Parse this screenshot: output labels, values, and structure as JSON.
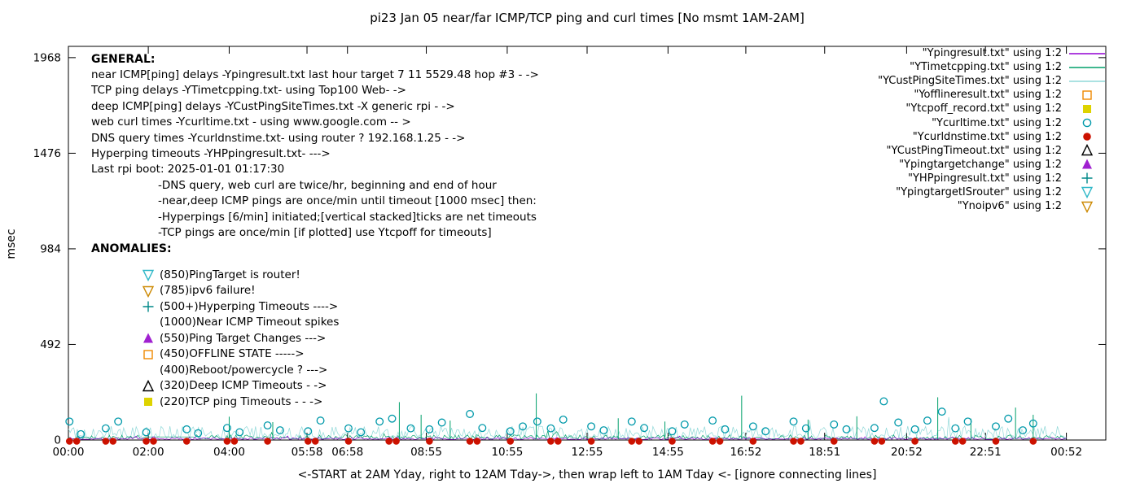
{
  "title": "pi23 Jan 05 near/far ICMP/TCP ping and curl times [No msmt 1AM-2AM]",
  "annotations": {
    "general": {
      "heading": "GENERAL:",
      "lines": [
        "near ICMP[ping] delays -Ypingresult.txt last hour target 7 11 5529.48 hop #3 - ->",
        "TCP ping delays -YTimetcpping.txt- using Top100 Web- ->",
        "deep ICMP[ping] delays -YCustPingSiteTimes.txt -X generic rpi - ->",
        "web curl times -Ycurltime.txt - using www.google.com -- >",
        "DNS query times -Ycurldnstime.txt- using router ? 192.168.1.25 - ->",
        "Hyperping timeouts -YHPpingresult.txt- --->",
        "Last rpi boot: 2025-01-01 01:17:30"
      ],
      "notes": [
        "-DNS query, web curl are twice/hr, beginning and end of hour",
        "-near,deep ICMP pings are once/min until timeout [1000 msec] then:",
        "-Hyperpings [6/min] initiated;[vertical stacked]ticks are net timeouts",
        "-TCP pings are once/min [if plotted] use Ytcpoff for timeouts]"
      ]
    },
    "anomalies": {
      "heading": "ANOMALIES:",
      "items": [
        {
          "marker": "triangle-down-open",
          "color": "#30b8c8",
          "label": "(850)PingTarget is router!"
        },
        {
          "marker": "triangle-down-open",
          "color": "#cc8800",
          "label": "(785)ipv6 failure!"
        },
        {
          "marker": "plus",
          "color": "#008888",
          "label": "(500+)Hyperping Timeouts ---->"
        },
        {
          "marker": "none",
          "color": "",
          "label": "(1000)Near ICMP Timeout spikes"
        },
        {
          "marker": "triangle-up-filled",
          "color": "#a020d0",
          "label": "(550)Ping Target Changes --->"
        },
        {
          "marker": "square-open",
          "color": "#ef8800",
          "label": "(450)OFFLINE STATE ----->"
        },
        {
          "marker": "none",
          "color": "",
          "label": "(400)Reboot/powercycle ? --->"
        },
        {
          "marker": "triangle-up-open",
          "color": "#000000",
          "label": "(320)Deep ICMP Timeouts - ->"
        },
        {
          "marker": "square-filled",
          "color": "#ded300",
          "label": "(220)TCP ping Timeouts - - ->"
        }
      ]
    }
  },
  "chart_data": {
    "type": "line",
    "title": "pi23 Jan 05 near/far ICMP/TCP ping and curl times [No msmt 1AM-2AM]",
    "xlabel": "<-START at 2AM Yday, right to 12AM Tday->, then wrap left to 1AM Tday <- [ignore connecting lines]",
    "ylabel": "msec",
    "ylim": [
      0,
      2026
    ],
    "yticks": [
      0,
      492,
      984,
      1476,
      1968
    ],
    "grid": false,
    "legend_position": "top-right",
    "data_end": 0.962,
    "xticks": [
      {
        "label": "00:00",
        "pos": 0.0
      },
      {
        "label": "02:00",
        "pos": 0.077
      },
      {
        "label": "04:00",
        "pos": 0.155
      },
      {
        "label": "05:58",
        "pos": 0.23
      },
      {
        "label": "06:58",
        "pos": 0.269
      },
      {
        "label": "08:55",
        "pos": 0.345
      },
      {
        "label": "10:55",
        "pos": 0.423
      },
      {
        "label": "12:55",
        "pos": 0.5
      },
      {
        "label": "14:55",
        "pos": 0.578
      },
      {
        "label": "16:52",
        "pos": 0.653
      },
      {
        "label": "18:51",
        "pos": 0.729
      },
      {
        "label": "20:52",
        "pos": 0.808
      },
      {
        "label": "22:51",
        "pos": 0.884
      },
      {
        "label": "00:52",
        "pos": 0.962
      }
    ],
    "legend": [
      {
        "label": "\"Ypingresult.txt\" using 1:2",
        "marker": "line",
        "color": "#9400d3"
      },
      {
        "label": "\"YTimetcpping.txt\" using 1:2",
        "marker": "line",
        "color": "#00a06a"
      },
      {
        "label": "\"YCustPingSiteTimes.txt\" using 1:2",
        "marker": "line",
        "color": "#8fd8d8"
      },
      {
        "label": "\"Yofflineresult.txt\" using 1:2",
        "marker": "square-open",
        "color": "#ef8800"
      },
      {
        "label": "\"Ytcpoff_record.txt\" using 1:2",
        "marker": "square-filled",
        "color": "#ded300"
      },
      {
        "label": "\"Ycurltime.txt\" using 1:2",
        "marker": "circle-open",
        "color": "#0099aa"
      },
      {
        "label": "\"Ycurldnstime.txt\" using 1:2",
        "marker": "circle-filled",
        "color": "#cc1100"
      },
      {
        "label": "\"YCustPingTimeout.txt\" using 1:2",
        "marker": "triangle-up-open",
        "color": "#000000"
      },
      {
        "label": "\"Ypingtargetchange\" using 1:2",
        "marker": "triangle-up-filled",
        "color": "#a020d0"
      },
      {
        "label": "\"YHPpingresult.txt\" using 1:2",
        "marker": "plus",
        "color": "#008888"
      },
      {
        "label": "\"YpingtargetISrouter\" using 1:2",
        "marker": "triangle-down-open",
        "color": "#30b8c8"
      },
      {
        "label": "\"Ynoipv6\" using 1:2",
        "marker": "triangle-down-open",
        "color": "#cc8800"
      }
    ],
    "baseline_series": [
      {
        "name": "YCustPingSiteTimes",
        "color": "#8fd8d8",
        "base": 10,
        "amp": 62,
        "pow": 1.7,
        "seed": 41
      },
      {
        "name": "YTimetcpping",
        "color": "#00a06a",
        "base": 5,
        "amp": 22,
        "pow": 2.0,
        "seed": 17,
        "flat": [
          0.073,
          0.121,
          16
        ]
      },
      {
        "name": "Ypingresult",
        "color": "#9400d3",
        "base": 3,
        "amp": 11,
        "pow": 2.0,
        "seed": 7
      }
    ],
    "spikes_msec": [
      [
        0.155,
        120
      ],
      [
        0.197,
        92
      ],
      [
        0.319,
        195
      ],
      [
        0.34,
        130
      ],
      [
        0.368,
        100
      ],
      [
        0.451,
        240
      ],
      [
        0.53,
        112
      ],
      [
        0.575,
        95
      ],
      [
        0.649,
        228
      ],
      [
        0.713,
        105
      ],
      [
        0.76,
        122
      ],
      [
        0.838,
        220
      ],
      [
        0.87,
        110
      ],
      [
        0.913,
        167
      ],
      [
        0.93,
        130
      ]
    ],
    "curl_circles_msec": [
      [
        0.001,
        95
      ],
      [
        0.012,
        30
      ],
      [
        0.036,
        60
      ],
      [
        0.048,
        95
      ],
      [
        0.075,
        40
      ],
      [
        0.114,
        55
      ],
      [
        0.125,
        35
      ],
      [
        0.153,
        62
      ],
      [
        0.165,
        40
      ],
      [
        0.192,
        75
      ],
      [
        0.204,
        50
      ],
      [
        0.231,
        45
      ],
      [
        0.243,
        100
      ],
      [
        0.27,
        60
      ],
      [
        0.282,
        40
      ],
      [
        0.3,
        95
      ],
      [
        0.312,
        110
      ],
      [
        0.33,
        60
      ],
      [
        0.348,
        55
      ],
      [
        0.36,
        90
      ],
      [
        0.387,
        134
      ],
      [
        0.399,
        62
      ],
      [
        0.426,
        45
      ],
      [
        0.438,
        70
      ],
      [
        0.452,
        95
      ],
      [
        0.465,
        60
      ],
      [
        0.477,
        105
      ],
      [
        0.504,
        70
      ],
      [
        0.516,
        50
      ],
      [
        0.543,
        95
      ],
      [
        0.555,
        62
      ],
      [
        0.582,
        45
      ],
      [
        0.594,
        80
      ],
      [
        0.621,
        100
      ],
      [
        0.633,
        55
      ],
      [
        0.66,
        70
      ],
      [
        0.672,
        45
      ],
      [
        0.699,
        95
      ],
      [
        0.711,
        60
      ],
      [
        0.738,
        80
      ],
      [
        0.75,
        55
      ],
      [
        0.777,
        62
      ],
      [
        0.786,
        199
      ],
      [
        0.8,
        90
      ],
      [
        0.816,
        55
      ],
      [
        0.828,
        100
      ],
      [
        0.842,
        146
      ],
      [
        0.855,
        60
      ],
      [
        0.867,
        95
      ],
      [
        0.894,
        70
      ],
      [
        0.906,
        110
      ],
      [
        0.92,
        50
      ],
      [
        0.93,
        85
      ]
    ],
    "dns_dots_pos": [
      0.001,
      0.008,
      0.036,
      0.043,
      0.075,
      0.082,
      0.114,
      0.153,
      0.16,
      0.192,
      0.231,
      0.238,
      0.27,
      0.309,
      0.316,
      0.348,
      0.387,
      0.394,
      0.426,
      0.465,
      0.472,
      0.504,
      0.543,
      0.55,
      0.582,
      0.621,
      0.628,
      0.66,
      0.699,
      0.706,
      0.738,
      0.777,
      0.784,
      0.816,
      0.855,
      0.862,
      0.894,
      0.93
    ],
    "colors": {
      "spike": "#00a06a",
      "curl_circle": "#0099aa",
      "dns_dot": "#cc1100",
      "axis": "#000000"
    }
  }
}
